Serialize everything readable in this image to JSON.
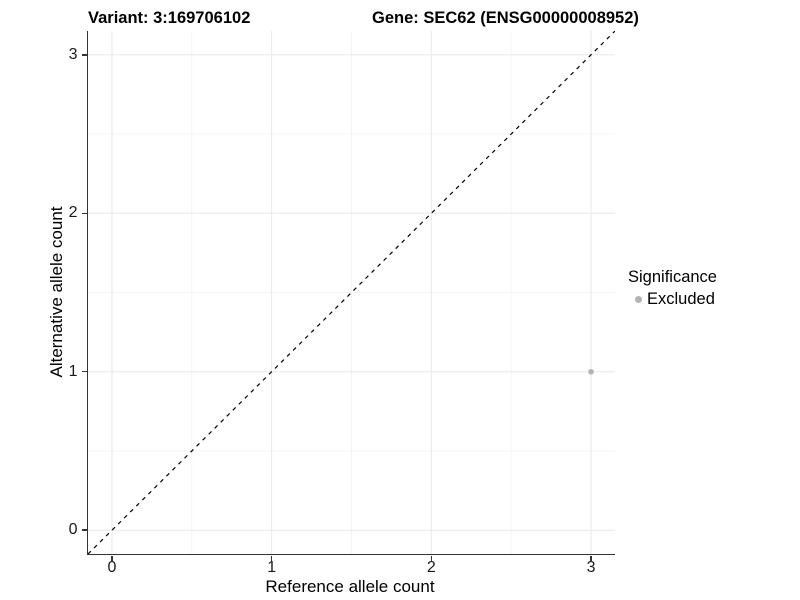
{
  "titles": {
    "variant": "Variant: 3:169706102",
    "gene": "Gene: SEC62 (ENSG00000008952)"
  },
  "axes": {
    "x": {
      "label": "Reference allele count",
      "tick_values": [
        0,
        1,
        2,
        3
      ],
      "tick_labels": [
        "0",
        "1",
        "2",
        "3"
      ]
    },
    "y": {
      "label": "Alternative allele count",
      "tick_values": [
        0,
        1,
        2,
        3
      ],
      "tick_labels": [
        "0",
        "1",
        "2",
        "3"
      ]
    }
  },
  "legend": {
    "title": "Significance",
    "items": [
      {
        "label": "Excluded",
        "color": "#b3b3b3"
      }
    ]
  },
  "colors": {
    "point": "#b3b3b3",
    "grid_major": "#e8e8e8",
    "grid_minor": "#f4f4f4",
    "axis_line": "#333333",
    "reference_line": "#000000",
    "title_text": "#000000",
    "tick_text": "#1a1a1a"
  },
  "chart_data": {
    "type": "scatter",
    "title": "Variant: 3:169706102 | Gene: SEC62 (ENSG00000008952)",
    "xlabel": "Reference allele count",
    "ylabel": "Alternative allele count",
    "xlim": [
      -0.15,
      3.15
    ],
    "ylim": [
      -0.15,
      3.15
    ],
    "grid": {
      "major": [
        0,
        1,
        2,
        3
      ],
      "minor": [
        0.5,
        1.5,
        2.5
      ],
      "visible": true
    },
    "reference_line": {
      "name": "identity-line",
      "style": "dashed",
      "from": [
        -0.15,
        -0.15
      ],
      "to": [
        3.15,
        3.15
      ]
    },
    "legend_position": "right",
    "series": [
      {
        "name": "Excluded",
        "color": "#b3b3b3",
        "points": [
          {
            "x": 3,
            "y": 1
          }
        ]
      }
    ]
  }
}
